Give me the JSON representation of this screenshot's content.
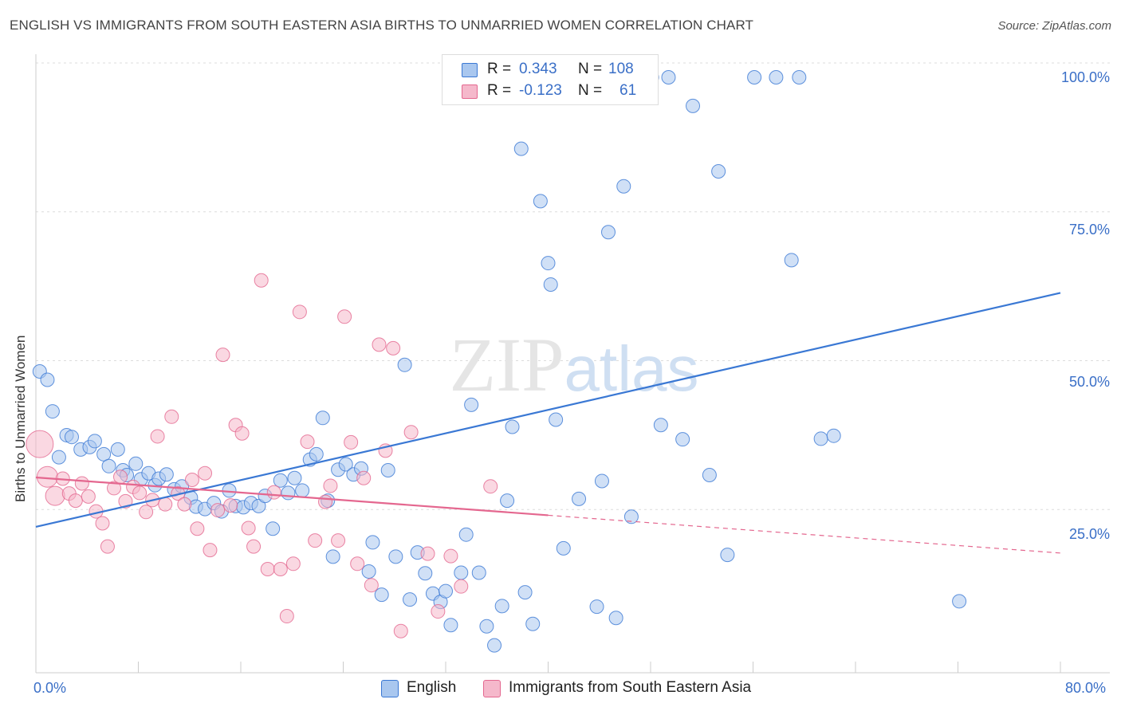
{
  "title": "ENGLISH VS IMMIGRANTS FROM SOUTH EASTERN ASIA BIRTHS TO UNMARRIED WOMEN CORRELATION CHART",
  "source": "Source: ZipAtlas.com",
  "watermark": "ZIPatlas",
  "legend_top": {
    "rows": [
      {
        "r_label": "R =",
        "r_value": "0.343",
        "n_label": "N =",
        "n_value": "108",
        "color": "#a9c7ef"
      },
      {
        "r_label": "R =",
        "r_value": "-0.123",
        "n_label": "N =",
        "n_value": "61",
        "color": "#f5b8cb"
      }
    ]
  },
  "legend_bottom": [
    {
      "label": "English",
      "color": "#a9c7ef"
    },
    {
      "label": "Immigrants from South Eastern Asia",
      "color": "#f5b8cb"
    }
  ],
  "chart_data": {
    "type": "scatter",
    "title": "ENGLISH VS IMMIGRANTS FROM SOUTH EASTERN ASIA BIRTHS TO UNMARRIED WOMEN CORRELATION CHART",
    "xlabel": "",
    "ylabel": "Births to Unmarried Women",
    "xlim": [
      0,
      80
    ],
    "ylim": [
      0,
      100
    ],
    "x_tick_labels": [
      "0.0%",
      "80.0%"
    ],
    "y_tick_labels": [
      "25.0%",
      "50.0%",
      "75.0%",
      "100.0%"
    ],
    "y_ticks": [
      25,
      50,
      75,
      100
    ],
    "grid": true,
    "legend": "bottom",
    "colors": {
      "english": "#3a78d4",
      "english_fill": "#a9c7ef",
      "sea": "#e4678f",
      "sea_fill": "#f5b8cb"
    },
    "series": [
      {
        "name": "English",
        "trend": {
          "x": [
            0,
            80
          ],
          "y": [
            24.5,
            63.8
          ],
          "dashed_from": null
        },
        "points": [
          [
            0.3,
            50.6
          ],
          [
            0.9,
            49.2
          ],
          [
            1.3,
            43.9
          ],
          [
            1.8,
            36.2
          ],
          [
            2.4,
            39.9
          ],
          [
            2.8,
            39.6
          ],
          [
            3.5,
            37.5
          ],
          [
            4.2,
            37.9
          ],
          [
            4.6,
            38.9
          ],
          [
            5.3,
            36.7
          ],
          [
            5.7,
            34.7
          ],
          [
            6.4,
            37.5
          ],
          [
            6.8,
            34.0
          ],
          [
            7.1,
            33.2
          ],
          [
            7.8,
            35.1
          ],
          [
            8.2,
            32.5
          ],
          [
            8.8,
            33.5
          ],
          [
            9.3,
            31.5
          ],
          [
            9.6,
            32.6
          ],
          [
            10.2,
            33.3
          ],
          [
            10.8,
            30.8
          ],
          [
            11.4,
            31.3
          ],
          [
            12.1,
            29.4
          ],
          [
            12.5,
            27.9
          ],
          [
            13.2,
            27.5
          ],
          [
            13.9,
            28.5
          ],
          [
            14.5,
            27.1
          ],
          [
            15.1,
            30.6
          ],
          [
            15.6,
            28.0
          ],
          [
            16.2,
            27.8
          ],
          [
            16.8,
            28.5
          ],
          [
            17.4,
            28.0
          ],
          [
            17.9,
            29.7
          ],
          [
            18.5,
            24.2
          ],
          [
            19.1,
            32.3
          ],
          [
            19.7,
            30.2
          ],
          [
            20.2,
            32.7
          ],
          [
            20.8,
            30.6
          ],
          [
            21.4,
            35.8
          ],
          [
            21.9,
            36.7
          ],
          [
            22.4,
            42.8
          ],
          [
            22.8,
            28.9
          ],
          [
            23.2,
            19.5
          ],
          [
            23.6,
            34.1
          ],
          [
            24.2,
            35.0
          ],
          [
            24.8,
            33.3
          ],
          [
            25.4,
            34.3
          ],
          [
            26.0,
            17.0
          ],
          [
            26.3,
            21.9
          ],
          [
            27.0,
            13.1
          ],
          [
            27.5,
            34.0
          ],
          [
            28.1,
            19.5
          ],
          [
            28.8,
            51.7
          ],
          [
            29.2,
            12.3
          ],
          [
            29.8,
            20.2
          ],
          [
            30.4,
            16.7
          ],
          [
            31.0,
            13.3
          ],
          [
            31.6,
            11.9
          ],
          [
            32.0,
            13.7
          ],
          [
            32.4,
            8.0
          ],
          [
            33.2,
            16.8
          ],
          [
            33.6,
            23.2
          ],
          [
            34.0,
            45.0
          ],
          [
            34.6,
            16.8
          ],
          [
            35.2,
            7.8
          ],
          [
            35.8,
            4.6
          ],
          [
            36.4,
            11.2
          ],
          [
            36.8,
            28.9
          ],
          [
            37.2,
            41.3
          ],
          [
            37.9,
            88.0
          ],
          [
            38.2,
            13.5
          ],
          [
            38.8,
            8.2
          ],
          [
            39.4,
            79.2
          ],
          [
            40.0,
            68.8
          ],
          [
            40.2,
            65.2
          ],
          [
            40.6,
            42.5
          ],
          [
            41.2,
            20.9
          ],
          [
            42.4,
            29.2
          ],
          [
            43.0,
            100.0
          ],
          [
            43.8,
            11.1
          ],
          [
            44.2,
            32.2
          ],
          [
            44.7,
            74.0
          ],
          [
            45.3,
            9.2
          ],
          [
            45.9,
            81.7
          ],
          [
            46.5,
            26.2
          ],
          [
            48.1,
            100.0
          ],
          [
            48.8,
            41.6
          ],
          [
            49.4,
            100.0
          ],
          [
            50.5,
            39.2
          ],
          [
            51.3,
            95.2
          ],
          [
            52.6,
            33.2
          ],
          [
            53.3,
            84.2
          ],
          [
            54.0,
            19.8
          ],
          [
            56.1,
            100.0
          ],
          [
            57.8,
            100.0
          ],
          [
            59.6,
            100.0
          ],
          [
            59.0,
            69.3
          ],
          [
            61.3,
            39.3
          ],
          [
            62.3,
            39.8
          ],
          [
            72.1,
            12.0
          ]
        ]
      },
      {
        "name": "Immigrants from South Eastern Asia",
        "trend": {
          "x": [
            0,
            80
          ],
          "y": [
            32.8,
            20.1
          ],
          "dashed_from": 40
        },
        "points": [
          [
            0.3,
            38.4
          ],
          [
            0.9,
            32.9
          ],
          [
            1.5,
            29.7
          ],
          [
            2.1,
            32.6
          ],
          [
            2.6,
            30.1
          ],
          [
            3.1,
            28.9
          ],
          [
            3.6,
            31.8
          ],
          [
            4.1,
            29.6
          ],
          [
            4.7,
            27.1
          ],
          [
            5.2,
            25.1
          ],
          [
            5.6,
            21.2
          ],
          [
            6.1,
            31.0
          ],
          [
            6.6,
            32.9
          ],
          [
            7.0,
            28.8
          ],
          [
            7.6,
            31.2
          ],
          [
            8.1,
            30.2
          ],
          [
            8.6,
            27.0
          ],
          [
            9.1,
            29.0
          ],
          [
            9.5,
            39.7
          ],
          [
            10.1,
            28.3
          ],
          [
            10.6,
            43.0
          ],
          [
            11.1,
            30.1
          ],
          [
            11.6,
            28.3
          ],
          [
            12.2,
            32.4
          ],
          [
            12.6,
            24.2
          ],
          [
            13.2,
            33.5
          ],
          [
            13.6,
            20.6
          ],
          [
            14.2,
            27.3
          ],
          [
            14.6,
            53.4
          ],
          [
            15.2,
            28.1
          ],
          [
            15.6,
            41.6
          ],
          [
            16.1,
            40.2
          ],
          [
            16.6,
            24.3
          ],
          [
            17.0,
            21.2
          ],
          [
            17.6,
            65.9
          ],
          [
            18.1,
            17.4
          ],
          [
            18.6,
            30.3
          ],
          [
            19.1,
            17.4
          ],
          [
            19.6,
            9.5
          ],
          [
            20.1,
            18.3
          ],
          [
            20.6,
            60.6
          ],
          [
            21.2,
            38.8
          ],
          [
            21.8,
            22.2
          ],
          [
            22.6,
            28.7
          ],
          [
            23.0,
            31.4
          ],
          [
            23.6,
            22.2
          ],
          [
            24.1,
            59.8
          ],
          [
            24.6,
            38.7
          ],
          [
            25.1,
            18.3
          ],
          [
            25.6,
            32.7
          ],
          [
            26.2,
            14.7
          ],
          [
            26.8,
            55.1
          ],
          [
            27.3,
            37.3
          ],
          [
            27.9,
            54.5
          ],
          [
            28.5,
            7.0
          ],
          [
            29.3,
            40.4
          ],
          [
            30.6,
            20.0
          ],
          [
            31.4,
            10.3
          ],
          [
            32.4,
            19.6
          ],
          [
            33.2,
            14.5
          ],
          [
            35.5,
            31.3
          ]
        ]
      }
    ]
  }
}
